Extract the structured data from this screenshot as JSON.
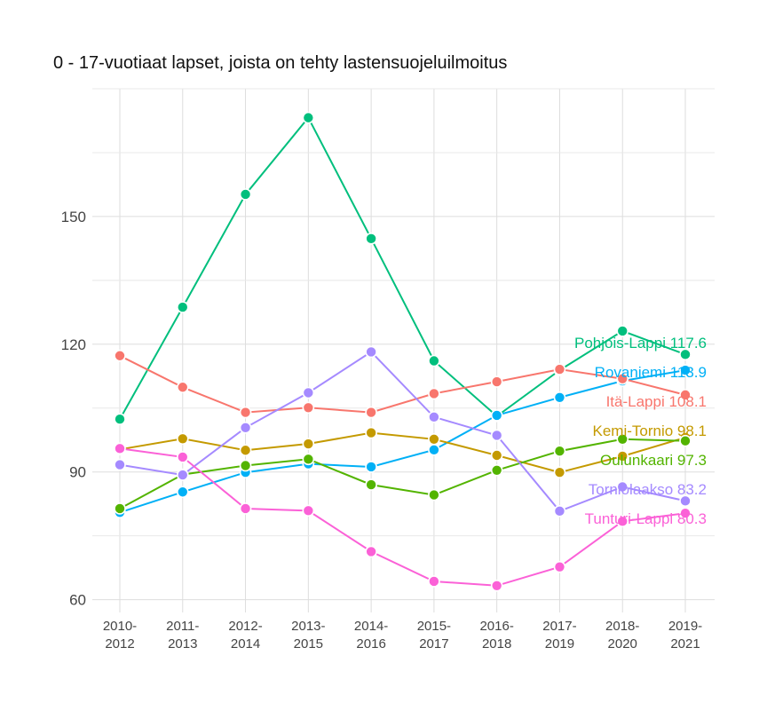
{
  "chart_data": {
    "type": "line",
    "title": "0 - 17-vuotiaat lapset, joista on tehty lastensuojeluilmoitus",
    "xlabel": "",
    "ylabel": "",
    "x_ticks": [
      "2010-\n2012",
      "2011-\n2013",
      "2012-\n2014",
      "2013-\n2015",
      "2014-\n2016",
      "2015-\n2017",
      "2016-\n2018",
      "2017-\n2019",
      "2018-\n2020",
      "2019-\n2021"
    ],
    "y_ticks": [
      60,
      90,
      120,
      150
    ],
    "ylim": [
      57,
      180
    ],
    "grid": true,
    "legend": "none",
    "series": [
      {
        "name": "Pohjois-Lappi",
        "end_label": "Pohjois-Lappi 117.6",
        "color": "#00BF7D",
        "values": [
          102.4,
          128.7,
          155.2,
          173.2,
          144.8,
          116.1,
          103.1,
          113.9,
          123.1,
          117.6
        ]
      },
      {
        "name": "Rovaniemi",
        "end_label": "Rovaniemi 113.9",
        "color": "#00B0F6",
        "values": [
          80.5,
          85.3,
          89.9,
          91.9,
          91.2,
          95.2,
          103.3,
          107.5,
          111.4,
          113.9
        ]
      },
      {
        "name": "Itä-Lappi",
        "end_label": "Itä-Lappi 108.1",
        "color": "#F8766D",
        "values": [
          117.3,
          109.9,
          104.0,
          105.1,
          104.0,
          108.4,
          111.2,
          114.1,
          111.9,
          108.1
        ]
      },
      {
        "name": "Kemi-Tornio",
        "end_label": "Kemi-Tornio 98.1",
        "color": "#C49A00",
        "values": [
          95.3,
          97.8,
          95.1,
          96.6,
          99.2,
          97.7,
          93.9,
          89.9,
          93.7,
          98.1
        ]
      },
      {
        "name": "Oulunkaari",
        "end_label": "Oulunkaari 97.3",
        "color": "#53B400",
        "values": [
          81.4,
          89.4,
          91.5,
          93.0,
          87.0,
          84.6,
          90.4,
          94.9,
          97.7,
          97.3
        ]
      },
      {
        "name": "Torniolaakso",
        "end_label": "Torniolaakso 83.2",
        "color": "#A58AFF",
        "values": [
          91.7,
          89.3,
          100.4,
          108.6,
          118.2,
          102.9,
          98.6,
          80.8,
          86.5,
          83.2
        ]
      },
      {
        "name": "Tunturi-Lappi",
        "end_label": "Tunturi-Lappi 80.3",
        "color": "#FB61D7",
        "values": [
          95.5,
          93.5,
          81.4,
          80.9,
          71.3,
          64.3,
          63.3,
          67.7,
          78.4,
          80.3
        ]
      }
    ]
  }
}
